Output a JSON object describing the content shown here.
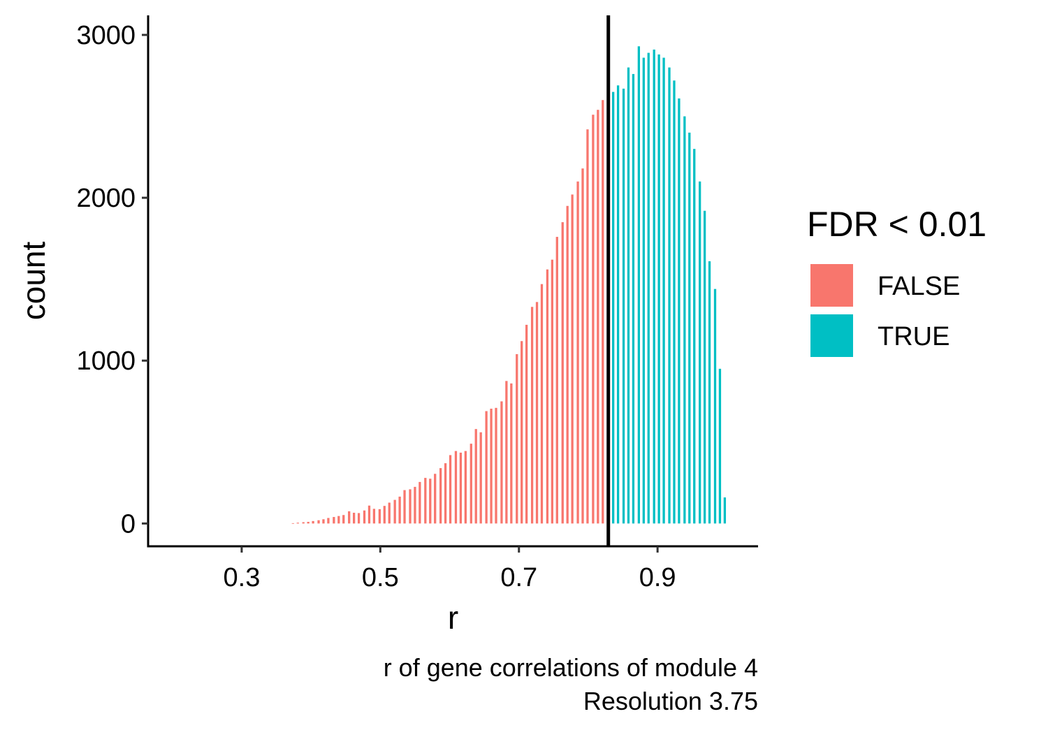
{
  "chart_data": {
    "type": "bar",
    "xlabel": "r",
    "ylabel": "count",
    "caption_lines": [
      "r of gene correlations of module 4",
      "Resolution 3.75"
    ],
    "xlim": [
      0.165,
      1.045
    ],
    "ylim": [
      -140,
      3120
    ],
    "x_ticks": [
      0.3,
      0.5,
      0.7,
      0.9
    ],
    "x_tick_labels": [
      "0.3",
      "0.5",
      "0.7",
      "0.9"
    ],
    "y_ticks": [
      0,
      1000,
      2000,
      3000
    ],
    "y_tick_labels": [
      "0",
      "1000",
      "2000",
      "3000"
    ],
    "bin_width": 0.00735,
    "threshold": 0.829,
    "legend": {
      "title": "FDR < 0.01",
      "position": "right",
      "entries": [
        {
          "label": "FALSE",
          "color": "#F8766D"
        },
        {
          "label": "TRUE",
          "color": "#00BFC4"
        }
      ]
    },
    "series": [
      {
        "name": "FALSE",
        "color": "#F8766D",
        "x": [
          0.374,
          0.381,
          0.389,
          0.396,
          0.403,
          0.411,
          0.418,
          0.425,
          0.433,
          0.44,
          0.447,
          0.455,
          0.462,
          0.469,
          0.477,
          0.484,
          0.491,
          0.499,
          0.506,
          0.513,
          0.521,
          0.528,
          0.535,
          0.543,
          0.55,
          0.557,
          0.565,
          0.572,
          0.579,
          0.587,
          0.594,
          0.601,
          0.609,
          0.616,
          0.623,
          0.631,
          0.638,
          0.645,
          0.653,
          0.66,
          0.667,
          0.675,
          0.682,
          0.689,
          0.697,
          0.704,
          0.711,
          0.719,
          0.726,
          0.733,
          0.741,
          0.748,
          0.755,
          0.763,
          0.77,
          0.777,
          0.785,
          0.792,
          0.799,
          0.807,
          0.814,
          0.821
        ],
        "values": [
          2,
          5,
          8,
          10,
          15,
          20,
          26,
          34,
          40,
          46,
          52,
          75,
          66,
          64,
          80,
          110,
          90,
          88,
          108,
          128,
          145,
          165,
          205,
          210,
          225,
          255,
          280,
          275,
          305,
          340,
          370,
          420,
          445,
          435,
          445,
          490,
          580,
          560,
          690,
          705,
          710,
          750,
          875,
          860,
          1040,
          1120,
          1220,
          1330,
          1360,
          1470,
          1560,
          1620,
          1760,
          1850,
          1950,
          2020,
          2100,
          2180,
          2420,
          2510,
          2540,
          2600
        ]
      },
      {
        "name": "TRUE",
        "color": "#00BFC4",
        "x": [
          0.836,
          0.843,
          0.851,
          0.858,
          0.865,
          0.873,
          0.88,
          0.887,
          0.895,
          0.902,
          0.909,
          0.917,
          0.924,
          0.931,
          0.939,
          0.946,
          0.953,
          0.961,
          0.968,
          0.975,
          0.983,
          0.99,
          0.997
        ],
        "values": [
          2650,
          2690,
          2670,
          2800,
          2760,
          2930,
          2860,
          2890,
          2910,
          2880,
          2860,
          2800,
          2720,
          2610,
          2500,
          2400,
          2300,
          2100,
          1920,
          1610,
          1440,
          950,
          160
        ]
      }
    ]
  }
}
